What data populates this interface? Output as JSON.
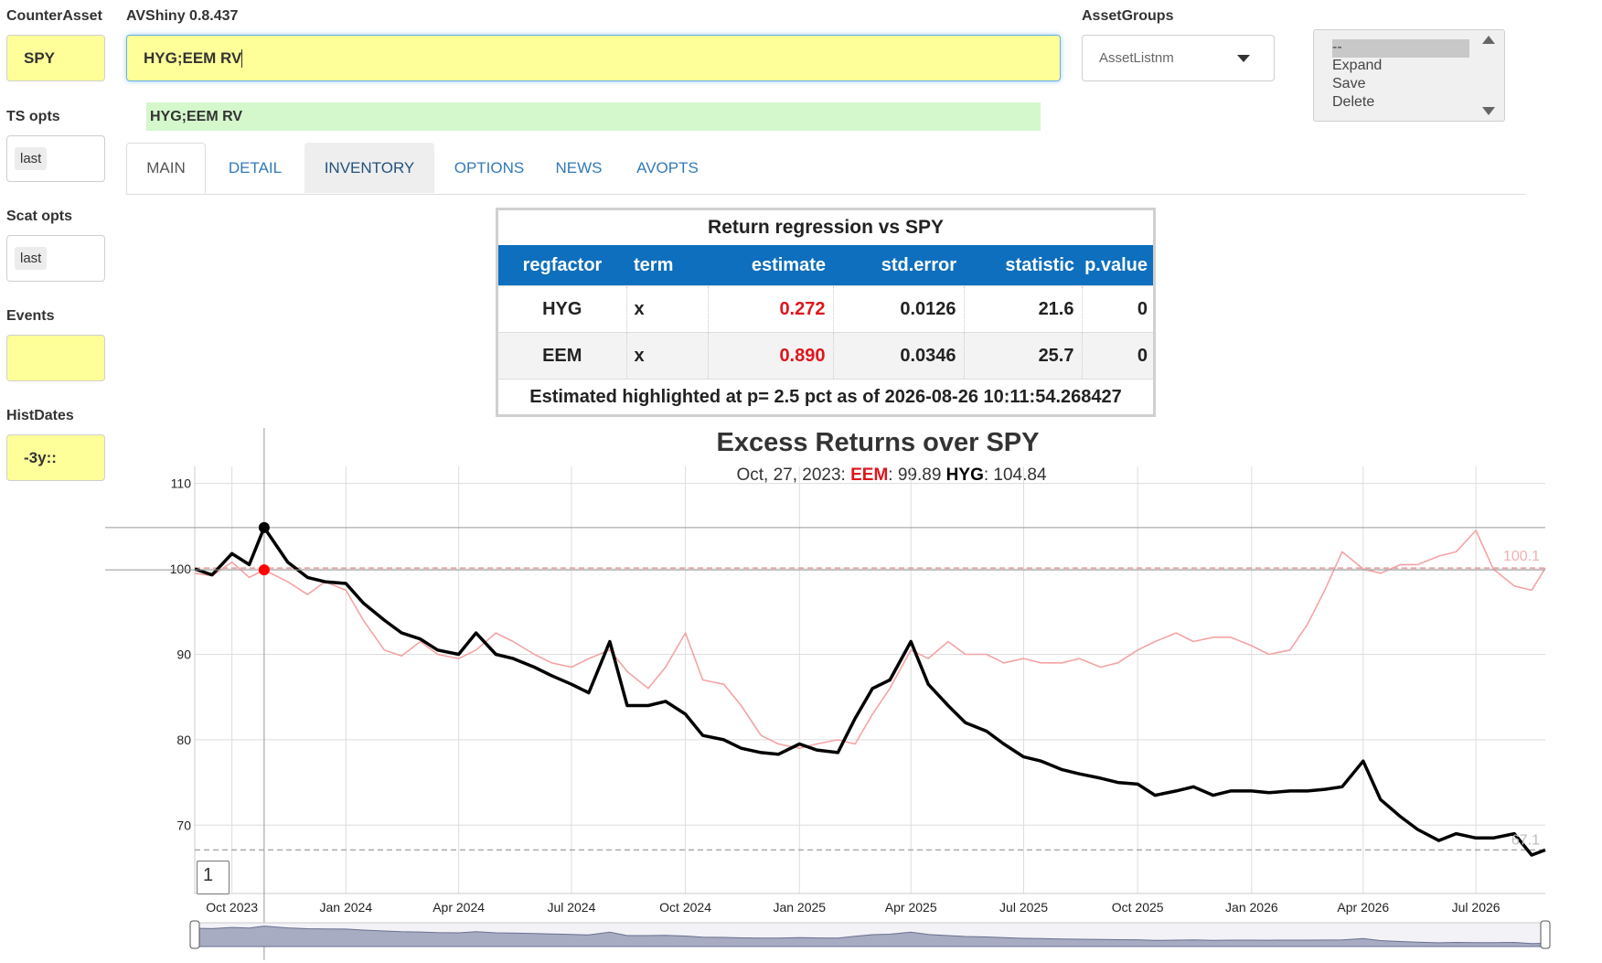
{
  "left": {
    "counter_asset_label": "CounterAsset",
    "counter_asset_value": "SPY",
    "ts_opts_label": "TS opts",
    "ts_opts_value": "last",
    "scat_opts_label": "Scat opts",
    "scat_opts_value": "last",
    "events_label": "Events",
    "events_value": "",
    "histdates_label": "HistDates",
    "histdates_value": "-3y::"
  },
  "header": {
    "app_title": "AVShiny 0.8.437",
    "main_input_value": "HYG;EEM RV",
    "echo_text": "HYG;EEM RV",
    "asset_groups_label": "AssetGroups",
    "asset_groups_select": "AssetListnm",
    "listbox_items": [
      "--",
      "Expand",
      "Save",
      "Delete"
    ]
  },
  "tabs": [
    {
      "label": "MAIN",
      "state": "active"
    },
    {
      "label": "DETAIL",
      "state": "normal"
    },
    {
      "label": "INVENTORY",
      "state": "hover"
    },
    {
      "label": "OPTIONS",
      "state": "normal"
    },
    {
      "label": "NEWS",
      "state": "normal"
    },
    {
      "label": "AVOPTS",
      "state": "normal"
    }
  ],
  "regression": {
    "title": "Return regression vs SPY",
    "columns": [
      "regfactor",
      "term",
      "estimate",
      "std.error",
      "statistic",
      "p.value"
    ],
    "rows": [
      {
        "regfactor": "HYG",
        "term": "x",
        "estimate": "0.272",
        "std_error": "0.0126",
        "statistic": "21.6",
        "p_value": "0"
      },
      {
        "regfactor": "EEM",
        "term": "x",
        "estimate": "0.890",
        "std_error": "0.0346",
        "statistic": "25.7",
        "p_value": "0"
      }
    ],
    "footer": "Estimated highlighted at p= 2.5 pct as of 2026-08-26 10:11:54.268427",
    "highlight_color": "#e0151c"
  },
  "chart": {
    "title": "Excess Returns over SPY",
    "legend_date": "Oct, 27, 2023:",
    "legend_s1_name": "EEM",
    "legend_s1_value": ": 99.89",
    "legend_s2_name": "HYG",
    "legend_s2_value": ": 104.84",
    "eem_last_label": "100.1",
    "hyg_last_label": "67.1",
    "roll_period": "1",
    "y_ticks": [
      "110",
      "100",
      "90",
      "80",
      "70"
    ],
    "x_ticks": [
      "Oct 2023",
      "Jan 2024",
      "Apr 2024",
      "Jul 2024",
      "Oct 2024",
      "Jan 2025",
      "Apr 2025",
      "Jul 2025",
      "Oct 2025",
      "Jan 2026",
      "Apr 2026",
      "Jul 2026"
    ],
    "colors": {
      "eem": "#f4a3a3",
      "hyg": "#000000",
      "grid": "#dddddd",
      "ref_eem": "#e79a9a",
      "ref_hyg": "#aaaaaa",
      "highlight": "#ff0000"
    }
  },
  "chart_data": {
    "type": "line",
    "title": "Excess Returns over SPY",
    "ylim": [
      62,
      112
    ],
    "x": [
      "2023-09-01",
      "2023-09-15",
      "2023-10-01",
      "2023-10-15",
      "2023-10-27",
      "2023-11-15",
      "2023-12-01",
      "2023-12-15",
      "2024-01-01",
      "2024-01-15",
      "2024-02-01",
      "2024-02-15",
      "2024-03-01",
      "2024-03-15",
      "2024-04-01",
      "2024-04-15",
      "2024-05-01",
      "2024-05-15",
      "2024-06-01",
      "2024-06-15",
      "2024-07-01",
      "2024-07-15",
      "2024-08-01",
      "2024-08-15",
      "2024-09-01",
      "2024-09-15",
      "2024-10-01",
      "2024-10-15",
      "2024-11-01",
      "2024-11-15",
      "2024-12-01",
      "2024-12-15",
      "2025-01-01",
      "2025-01-15",
      "2025-02-01",
      "2025-02-15",
      "2025-03-01",
      "2025-03-15",
      "2025-04-01",
      "2025-04-15",
      "2025-05-01",
      "2025-05-15",
      "2025-06-01",
      "2025-06-15",
      "2025-07-01",
      "2025-07-15",
      "2025-08-01",
      "2025-08-15",
      "2025-09-01",
      "2025-09-15",
      "2025-10-01",
      "2025-10-15",
      "2025-11-01",
      "2025-11-15",
      "2025-12-01",
      "2025-12-15",
      "2026-01-01",
      "2026-01-15",
      "2026-02-01",
      "2026-02-15",
      "2026-03-01",
      "2026-03-15",
      "2026-04-01",
      "2026-04-15",
      "2026-05-01",
      "2026-05-15",
      "2026-06-01",
      "2026-06-15",
      "2026-07-01",
      "2026-07-15",
      "2026-08-01",
      "2026-08-15",
      "2026-08-26"
    ],
    "series": [
      {
        "name": "EEM",
        "values": [
          99.5,
          99.2,
          100.8,
          99.0,
          99.89,
          98.5,
          97.0,
          98.5,
          97.5,
          94.0,
          90.5,
          89.8,
          91.5,
          90.0,
          89.5,
          90.5,
          92.5,
          91.5,
          90.0,
          89.0,
          88.5,
          89.5,
          90.5,
          88.0,
          86.0,
          88.5,
          92.5,
          87.0,
          86.5,
          84.0,
          80.5,
          79.5,
          79.0,
          79.5,
          80.0,
          79.5,
          83.0,
          86.0,
          90.5,
          89.5,
          91.5,
          90.0,
          90.0,
          89.0,
          89.5,
          89.0,
          89.0,
          89.5,
          88.5,
          89.0,
          90.5,
          91.5,
          92.5,
          91.5,
          92.0,
          92.0,
          91.0,
          90.0,
          90.5,
          93.5,
          97.5,
          102.0,
          100.0,
          99.5,
          100.5,
          100.5,
          101.5,
          102.0,
          104.5,
          100.0,
          98.0,
          97.5,
          100.1
        ]
      },
      {
        "name": "HYG",
        "values": [
          100.0,
          99.3,
          101.8,
          100.5,
          104.84,
          100.8,
          99.0,
          98.5,
          98.3,
          96.0,
          94.0,
          92.5,
          91.8,
          90.5,
          90.0,
          92.5,
          90.0,
          89.5,
          88.5,
          87.5,
          86.5,
          85.5,
          91.5,
          84.0,
          84.0,
          84.5,
          83.0,
          80.5,
          80.0,
          79.0,
          78.5,
          78.3,
          79.5,
          78.8,
          78.5,
          82.5,
          86.0,
          87.0,
          91.5,
          86.5,
          84.0,
          82.0,
          81.0,
          79.5,
          78.0,
          77.5,
          76.5,
          76.0,
          75.5,
          75.0,
          74.8,
          73.5,
          74.0,
          74.5,
          73.5,
          74.0,
          74.0,
          73.8,
          74.0,
          74.0,
          74.2,
          74.5,
          77.5,
          73.0,
          71.0,
          69.5,
          68.2,
          69.0,
          68.5,
          68.5,
          69.0,
          66.5,
          67.1
        ]
      }
    ],
    "x_tick_labels": [
      "Oct 2023",
      "Jan 2024",
      "Apr 2024",
      "Jul 2024",
      "Oct 2024",
      "Jan 2025",
      "Apr 2025",
      "Jul 2025",
      "Oct 2025",
      "Jan 2026",
      "Apr 2026",
      "Jul 2026"
    ],
    "y_tick_labels": [
      "110",
      "100",
      "90",
      "80",
      "70"
    ],
    "reference_lines": [
      100.1,
      67.1
    ],
    "highlight_date": "2023-10-27"
  }
}
